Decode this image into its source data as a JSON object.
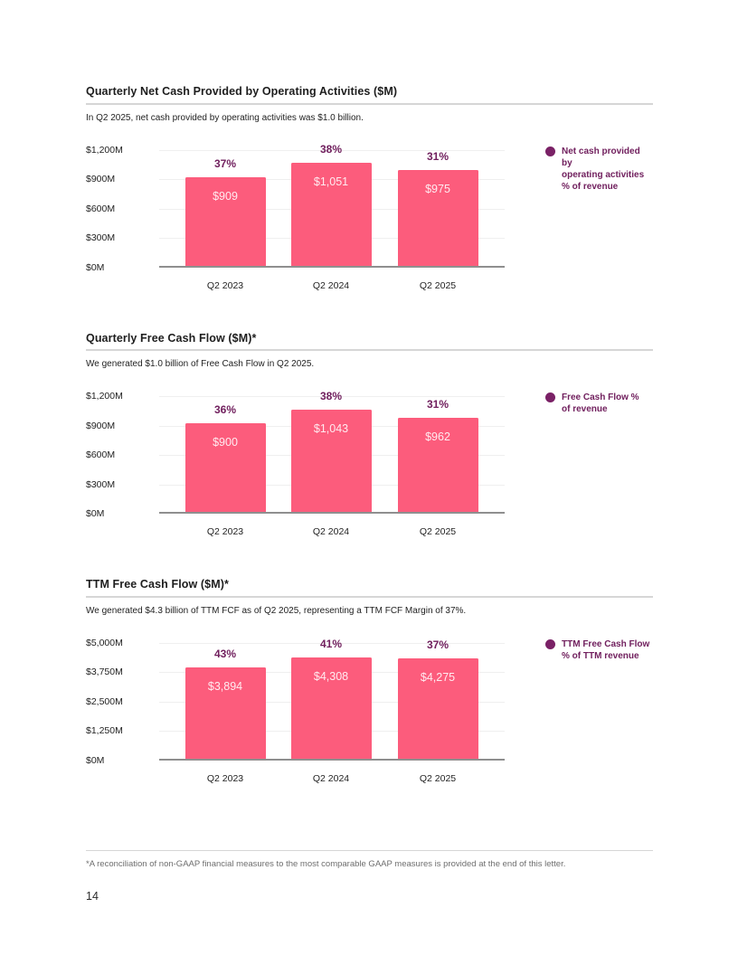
{
  "page": {
    "footnote": "*A reconciliation of non-GAAP financial measures to the most comparable GAAP measures is provided at the end of this letter.",
    "page_number": "14"
  },
  "colors": {
    "bar": "#FC5C7C",
    "bar_label": "#FFEBF0",
    "plum": "#71205E",
    "dot": "#7A2166",
    "text": "#222222",
    "grid": "#EFEFEF",
    "axis": "#8F8F8F",
    "rule": "#D6D6D6",
    "footnote": "#6E6E6E"
  },
  "chart_data": [
    {
      "type": "bar",
      "title": "Quarterly Net Cash Provided by Operating Activities ($M)",
      "subtitle": "In Q2 2025, net cash provided by operating activities was $1.0 billion.",
      "legend": "Net cash provided by\noperating activities\n% of revenue",
      "categories": [
        "Q2 2023",
        "Q2 2024",
        "Q2 2025"
      ],
      "values": [
        909,
        1051,
        975
      ],
      "value_labels": [
        "$909",
        "$1,051",
        "$975"
      ],
      "pct_of_revenue": [
        "37%",
        "38%",
        "31%"
      ],
      "y_ticks": [
        "$1,200M",
        "$900M",
        "$600M",
        "$300M",
        "$0M"
      ],
      "ylim": [
        0,
        1200
      ],
      "grid": true,
      "legend_position": "right"
    },
    {
      "type": "bar",
      "title": "Quarterly Free Cash Flow ($M)*",
      "subtitle": "We generated $1.0 billion of Free Cash Flow in Q2 2025.",
      "legend": "Free Cash Flow %\nof revenue",
      "categories": [
        "Q2 2023",
        "Q2 2024",
        "Q2 2025"
      ],
      "values": [
        900,
        1043,
        962
      ],
      "value_labels": [
        "$900",
        "$1,043",
        "$962"
      ],
      "pct_of_revenue": [
        "36%",
        "38%",
        "31%"
      ],
      "y_ticks": [
        "$1,200M",
        "$900M",
        "$600M",
        "$300M",
        "$0M"
      ],
      "ylim": [
        0,
        1200
      ],
      "grid": true,
      "legend_position": "right"
    },
    {
      "type": "bar",
      "title": "TTM Free Cash Flow ($M)*",
      "subtitle": "We generated $4.3 billion of TTM FCF as of Q2 2025, representing a TTM FCF Margin of 37%.",
      "legend": "TTM Free Cash Flow\n% of TTM revenue",
      "categories": [
        "Q2 2023",
        "Q2 2024",
        "Q2 2025"
      ],
      "values": [
        3894,
        4308,
        4275
      ],
      "value_labels": [
        "$3,894",
        "$4,308",
        "$4,275"
      ],
      "pct_of_revenue": [
        "43%",
        "41%",
        "37%"
      ],
      "y_ticks": [
        "$5,000M",
        "$3,750M",
        "$2,500M",
        "$1,250M",
        "$0M"
      ],
      "ylim": [
        0,
        5000
      ],
      "grid": true,
      "legend_position": "right"
    }
  ]
}
